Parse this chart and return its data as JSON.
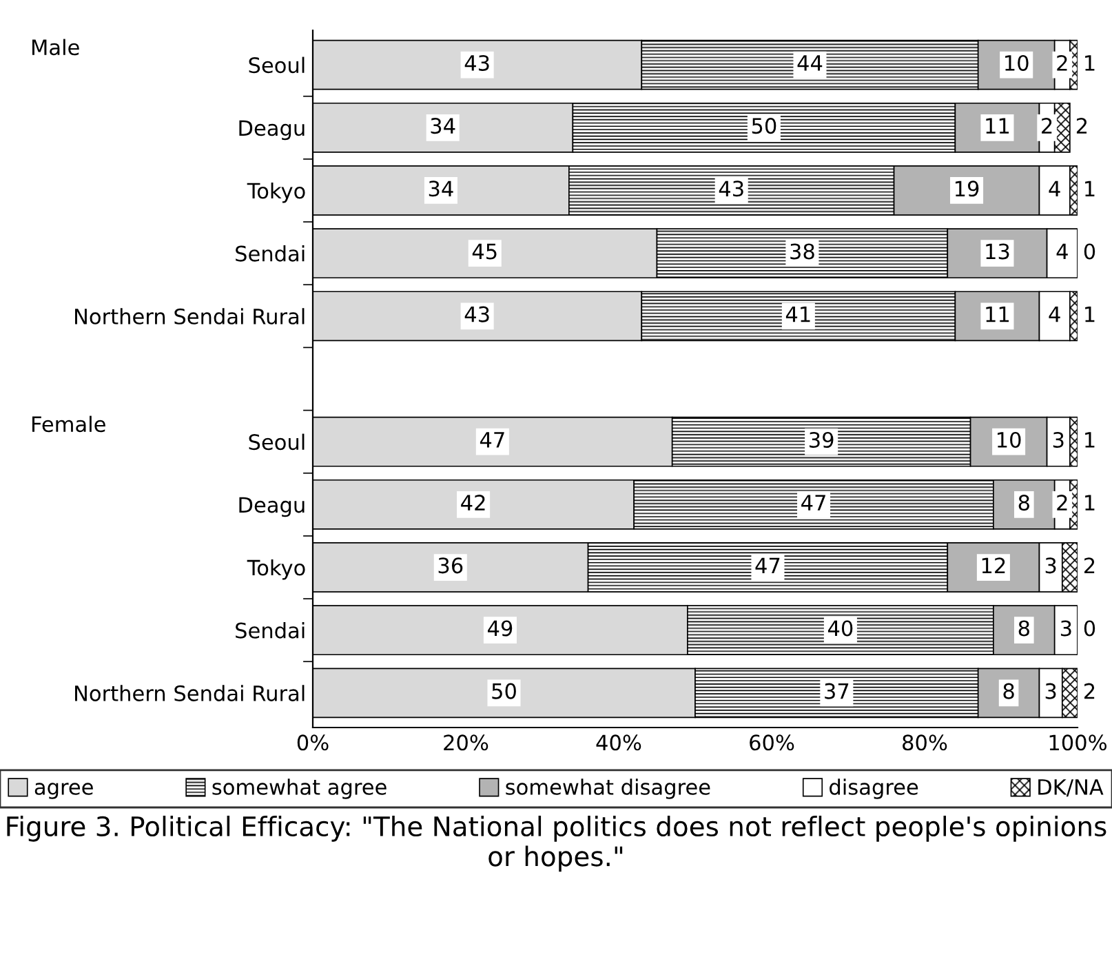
{
  "chart_data": {
    "type": "bar",
    "orientation": "horizontal",
    "stacked": true,
    "title": "Figure 3. Political Efficacy: \"The National politics does not reflect people's opinions or hopes.\"",
    "categories": [
      "Seoul",
      "Deagu",
      "Tokyo",
      "Sendai",
      "Northern Sendai Rural",
      null,
      "Seoul",
      "Deagu",
      "Tokyo",
      "Sendai",
      "Northern Sendai Rural"
    ],
    "annotations": [
      "Male",
      "Female"
    ],
    "series": [
      {
        "name": "agree",
        "color": "#d9d9d9",
        "values": [
          43,
          34,
          33.5,
          45,
          43,
          null,
          47,
          42,
          36,
          49,
          50
        ],
        "value_labels": [
          "43",
          "34",
          "34",
          "45",
          "43",
          null,
          "47",
          "42",
          "36",
          "49",
          "50"
        ]
      },
      {
        "name": "somewhat agree",
        "color": "#000000",
        "values": [
          44,
          50,
          42.5,
          38,
          41,
          null,
          39,
          47,
          47,
          40,
          37
        ],
        "value_labels": [
          "44",
          "50",
          "43",
          "38",
          "41",
          null,
          "39",
          "47",
          "47",
          "40",
          "37"
        ]
      },
      {
        "name": "somewhat disagree",
        "color": "#b3b3b3",
        "values": [
          10,
          11,
          19,
          13,
          11,
          null,
          10,
          8,
          12,
          8,
          8
        ],
        "value_labels": [
          "10",
          "11",
          "19",
          "13",
          "11",
          null,
          "10",
          "8",
          "12",
          "8",
          "8"
        ]
      },
      {
        "name": "disagree",
        "color": "#ffffff",
        "values": [
          2,
          2,
          4,
          4,
          4,
          null,
          3,
          2,
          3,
          3,
          3
        ],
        "value_labels": [
          "2",
          "2",
          "4",
          "4",
          "4",
          null,
          "3",
          "2",
          "3",
          "3",
          "3"
        ]
      },
      {
        "name": "DK/NA",
        "color": "#000000",
        "values": [
          1,
          2,
          1,
          0,
          1,
          null,
          1,
          1,
          2,
          0,
          2
        ],
        "value_labels": [
          "1",
          "2",
          "1",
          "0",
          "1",
          null,
          "1",
          "1",
          "2",
          "0",
          "2"
        ]
      }
    ],
    "xlim": [
      0,
      100
    ],
    "xticks": [
      {
        "value": 0,
        "label": "0%"
      },
      {
        "value": 20,
        "label": "20%"
      },
      {
        "value": 40,
        "label": "40%"
      },
      {
        "value": 60,
        "label": "60%"
      },
      {
        "value": 80,
        "label": "80%"
      },
      {
        "value": 100,
        "label": "100%"
      }
    ],
    "grid": false,
    "legend": "bottom"
  }
}
